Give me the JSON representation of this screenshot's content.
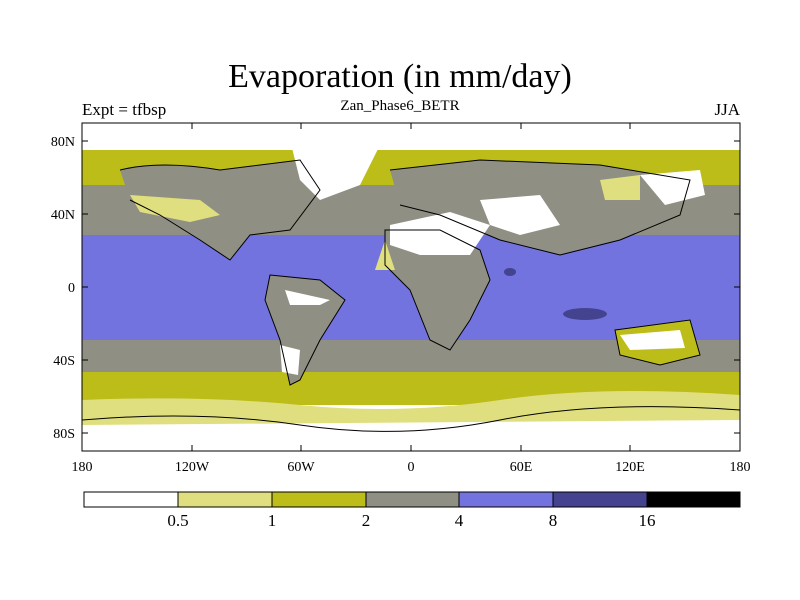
{
  "title": "Evaporation (in mm/day)",
  "left_subtitle": "Expt = tfbsp",
  "center_subtitle": "Zan_Phase6_BETR",
  "right_subtitle": "JJA",
  "lat_labels": [
    "80N",
    "40N",
    "0",
    "40S",
    "80S"
  ],
  "lon_labels": [
    "180",
    "120W",
    "60W",
    "0",
    "60E",
    "120E",
    "180"
  ],
  "colorbar": {
    "colors": [
      "#ffffff",
      "#e0df80",
      "#bcbd18",
      "#8f8f83",
      "#7373e0",
      "#434390",
      "#000000"
    ],
    "labels": [
      "0.5",
      "1",
      "2",
      "4",
      "8",
      "16"
    ]
  }
}
